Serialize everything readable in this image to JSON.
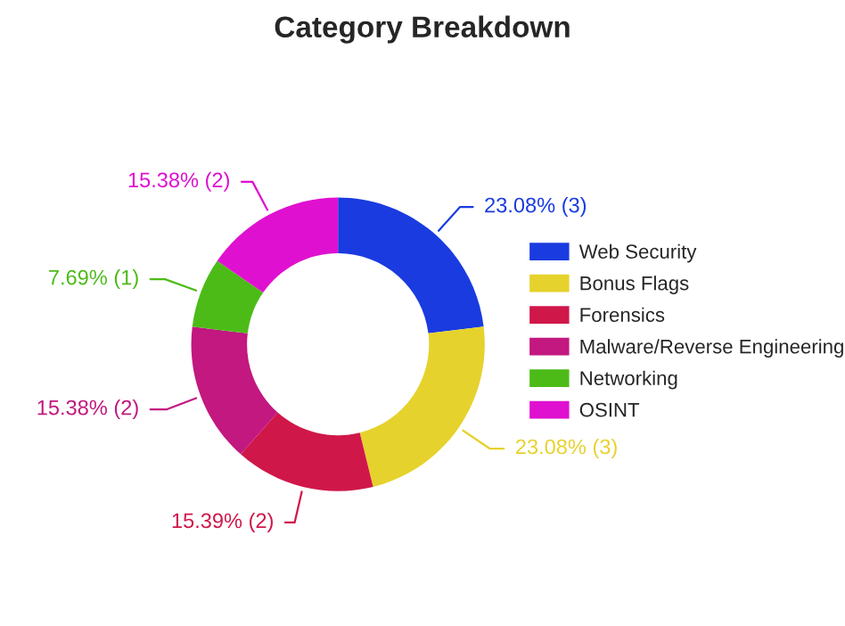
{
  "chart_data": {
    "type": "donut",
    "title": "Category Breakdown",
    "categories": [
      "Web Security",
      "Bonus Flags",
      "Forensics",
      "Malware/Reverse Engineering",
      "Networking",
      "OSINT"
    ],
    "values": [
      3,
      3,
      2,
      2,
      1,
      2
    ],
    "value_labels": [
      "23.08% (3)",
      "23.08% (3)",
      "15.39% (2)",
      "15.38% (2)",
      "7.69% (1)",
      "15.38% (2)"
    ],
    "colors": [
      "#1a3be0",
      "#e6d22c",
      "#d0174a",
      "#c2187f",
      "#4cbb17",
      "#e010d0"
    ],
    "legend": "right"
  }
}
